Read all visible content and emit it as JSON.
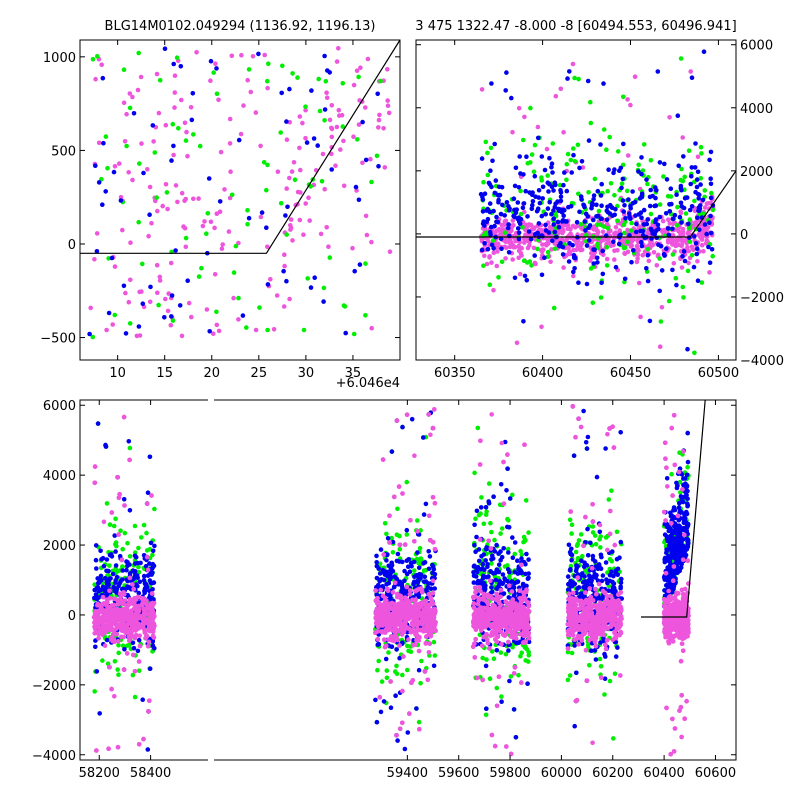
{
  "chart_data": [
    {
      "id": "top-left",
      "type": "scatter",
      "title": "BLG14M0102.049294 (1136.92, 1196.13)",
      "x_offset_label": "+6.046e4",
      "xlim": [
        6,
        40
      ],
      "ylim": [
        -620,
        1090
      ],
      "xticks": [
        10,
        15,
        20,
        25,
        30,
        35
      ],
      "yticks": [
        -500,
        0,
        500,
        1000
      ],
      "model_line": [
        [
          6,
          -50
        ],
        [
          25.8,
          -50
        ],
        [
          40,
          1090
        ]
      ],
      "series_colors": {
        "green": "#00ee00",
        "blue": "#0000ee",
        "magenta": "#ee55dd"
      },
      "series_counts": {
        "green": 85,
        "blue": 75,
        "magenta": 220
      }
    },
    {
      "id": "top-right",
      "type": "scatter",
      "title": "3 475 1322.47 -8.000 -8 [60494.553, 60496.941]",
      "xlim": [
        60328,
        60510
      ],
      "ylim": [
        -4000,
        6150
      ],
      "xticks": [
        60350,
        60400,
        60450,
        60500
      ],
      "yticks": [
        -4000,
        -2000,
        0,
        2000,
        4000,
        6000
      ],
      "yaxis_side": "right",
      "model_line": [
        [
          60328,
          -100
        ],
        [
          60484,
          -100
        ],
        [
          60510,
          2000
        ]
      ],
      "series_colors": {
        "green": "#00ee00",
        "blue": "#0000ee",
        "magenta": "#ee55dd"
      },
      "series_counts": {
        "green": 220,
        "blue": 420,
        "magenta": 750
      }
    },
    {
      "id": "bottom",
      "type": "scatter",
      "title": "",
      "xlim": [
        58125,
        60680
      ],
      "ylim": [
        -4150,
        6150
      ],
      "xticks": [
        58200,
        58400,
        59400,
        59600,
        59800,
        60000,
        60200,
        60400,
        60600
      ],
      "yticks": [
        -4000,
        -2000,
        0,
        2000,
        4000,
        6000
      ],
      "model_line": [
        [
          60310,
          -60
        ],
        [
          60488,
          -60
        ],
        [
          60560,
          6150
        ]
      ],
      "seasons": [
        [
          58180,
          58415
        ],
        [
          59275,
          59510
        ],
        [
          59655,
          59875
        ],
        [
          60025,
          60235
        ],
        [
          60400,
          60495
        ]
      ],
      "series_colors": {
        "green": "#00ee00",
        "blue": "#0000ee",
        "magenta": "#ee55dd"
      },
      "series_counts": {
        "green": 900,
        "blue": 1600,
        "magenta": 4000
      }
    }
  ]
}
